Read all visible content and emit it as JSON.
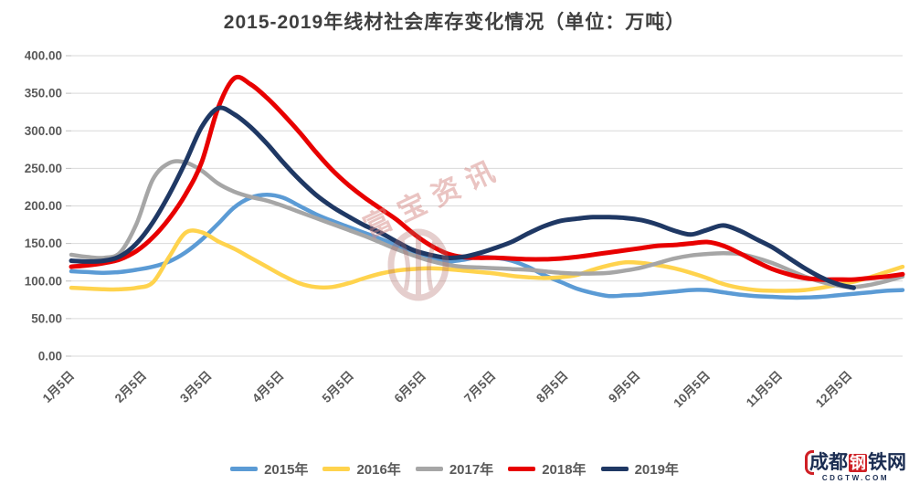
{
  "title": "2015-2019年线材社会库存变化情况（单位：万吨）",
  "watermark": {
    "center_text": "富宝资讯",
    "logo": {
      "prefix": "成都",
      "boxed": "钢",
      "suffix": "铁网",
      "domain": "CDGTW.COM"
    }
  },
  "legend": {
    "position": "bottom"
  },
  "chart_data": {
    "type": "line",
    "title": "2015-2019年线材社会库存变化情况（单位：万吨）",
    "ylabel": "",
    "xlabel": "",
    "ylim": [
      0,
      400
    ],
    "grid": "horizontal",
    "y_tick_labels": [
      "400.00",
      "350.00",
      "300.00",
      "250.00",
      "200.00",
      "150.00",
      "100.00",
      "50.00",
      "0.00"
    ],
    "x_total_days": 357,
    "x_ticks": [
      {
        "label": "1月5日",
        "day": 0
      },
      {
        "label": "2月5日",
        "day": 31
      },
      {
        "label": "3月5日",
        "day": 59
      },
      {
        "label": "4月5日",
        "day": 90
      },
      {
        "label": "5月5日",
        "day": 120
      },
      {
        "label": "6月5日",
        "day": 151
      },
      {
        "label": "7月5日",
        "day": 181
      },
      {
        "label": "8月5日",
        "day": 212
      },
      {
        "label": "9月5日",
        "day": 243
      },
      {
        "label": "10月5日",
        "day": 273
      },
      {
        "label": "11月5日",
        "day": 304
      },
      {
        "label": "12月5日",
        "day": 334
      }
    ],
    "series": [
      {
        "name": "2015年",
        "color": "#5B9BD5",
        "start_day": 0,
        "step_days": 7,
        "values": [
          113,
          112,
          111,
          112,
          115,
          119,
          126,
          138,
          155,
          176,
          198,
          211,
          215,
          211,
          200,
          189,
          180,
          172,
          164,
          156,
          147,
          138,
          130,
          126,
          128,
          132,
          131,
          127,
          119,
          108,
          99,
          90,
          84,
          80,
          81,
          82,
          84,
          86,
          88,
          88,
          85,
          82,
          80,
          79,
          78,
          78,
          79,
          81,
          83,
          85,
          87,
          88
        ]
      },
      {
        "name": "2016年",
        "color": "#FFD34D",
        "start_day": 0,
        "step_days": 7,
        "values": [
          91,
          90,
          89,
          89,
          91,
          98,
          132,
          164,
          165,
          153,
          143,
          131,
          119,
          107,
          97,
          92,
          92,
          97,
          104,
          110,
          114,
          116,
          117,
          116,
          114,
          112,
          110,
          107,
          105,
          104,
          105,
          108,
          115,
          121,
          125,
          124,
          121,
          117,
          111,
          104,
          96,
          91,
          88,
          87,
          87,
          88,
          91,
          95,
          99,
          105,
          112,
          119
        ]
      },
      {
        "name": "2017年",
        "color": "#A6A6A6",
        "start_day": 0,
        "step_days": 7,
        "values": [
          135,
          132,
          131,
          138,
          176,
          235,
          257,
          258,
          247,
          230,
          219,
          212,
          207,
          200,
          192,
          184,
          176,
          168,
          160,
          151,
          142,
          134,
          127,
          122,
          119,
          118,
          117,
          116,
          115,
          113,
          111,
          110,
          110,
          111,
          114,
          118,
          124,
          130,
          134,
          136,
          137,
          136,
          131,
          124,
          115,
          106,
          99,
          94,
          92,
          95,
          100,
          106
        ]
      },
      {
        "name": "2018年",
        "color": "#E80000",
        "start_day": 0,
        "step_days": 7,
        "values": [
          119,
          121,
          124,
          129,
          140,
          158,
          183,
          215,
          258,
          330,
          370,
          362,
          344,
          322,
          298,
          272,
          248,
          228,
          211,
          196,
          181,
          163,
          148,
          137,
          132,
          131,
          131,
          130,
          129,
          129,
          130,
          132,
          135,
          138,
          141,
          144,
          147,
          148,
          150,
          152,
          147,
          137,
          126,
          116,
          109,
          104,
          102,
          102,
          102,
          104,
          106,
          109
        ]
      },
      {
        "name": "2019年",
        "color": "#1F3864",
        "start_day": 0,
        "step_days": 7,
        "values": [
          127,
          126,
          127,
          133,
          150,
          178,
          215,
          258,
          305,
          330,
          322,
          305,
          283,
          258,
          235,
          215,
          199,
          186,
          174,
          164,
          152,
          141,
          135,
          131,
          132,
          137,
          144,
          152,
          163,
          173,
          180,
          183,
          185,
          185,
          184,
          181,
          175,
          167,
          162,
          168,
          174,
          167,
          156,
          145,
          131,
          117,
          105,
          96,
          91
        ]
      }
    ]
  }
}
